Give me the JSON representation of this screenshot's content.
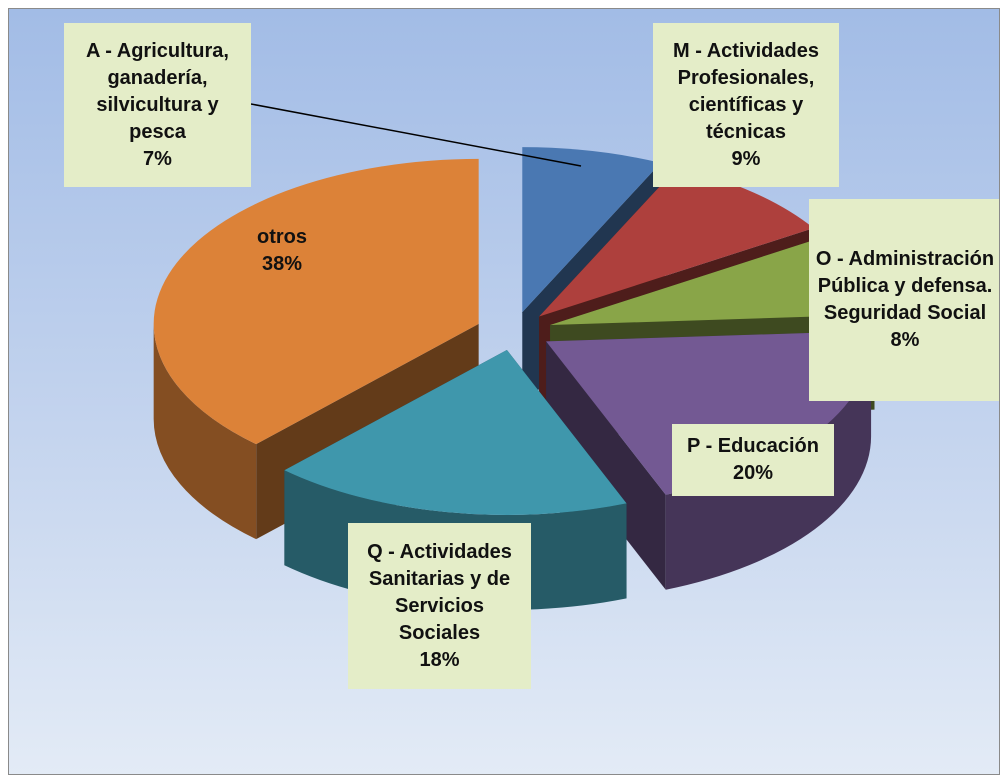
{
  "chart_data": {
    "type": "pie3d",
    "categories": [
      "A - Agricultura, ganadería, silvicultura y pesca",
      "M - Actividades Profesionales, científicas y técnicas",
      "O - Administración Pública y defensa. Seguridad Social",
      "P - Educación",
      "Q - Actividades Sanitarias y de Servicios Sociales",
      "otros"
    ],
    "values": [
      7,
      9,
      8,
      20,
      18,
      38
    ],
    "value_labels": [
      "7%",
      "9%",
      "8%",
      "20%",
      "18%",
      "38%"
    ],
    "colors": [
      "#4a78b2",
      "#ae403d",
      "#89a548",
      "#735993",
      "#3f97ac",
      "#dc8238"
    ]
  }
}
